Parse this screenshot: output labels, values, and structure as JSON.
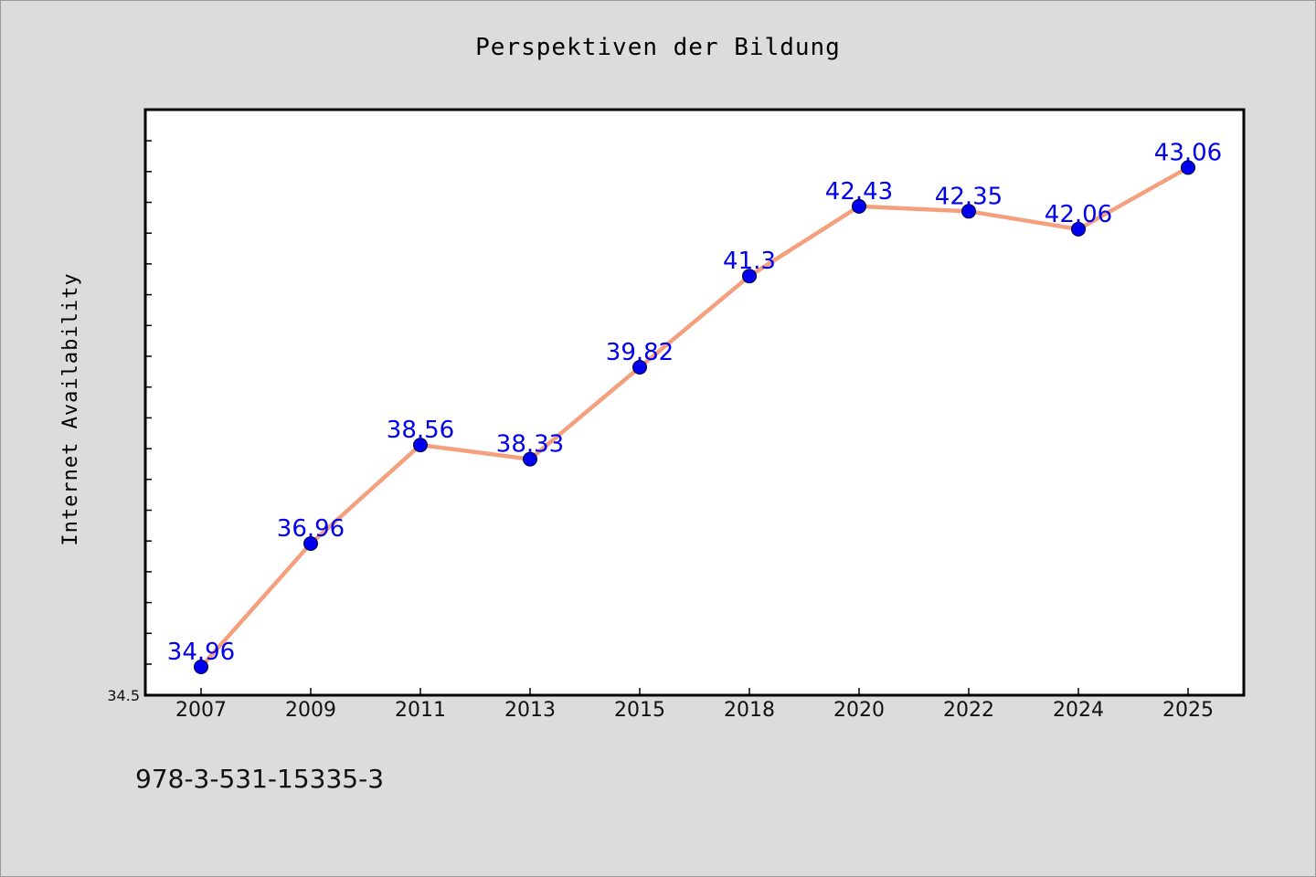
{
  "chart_data": {
    "type": "line",
    "title": "Perspektiven der Bildung",
    "xlabel": "",
    "ylabel": "Internet Availability",
    "categories": [
      "2007",
      "2009",
      "2011",
      "2013",
      "2015",
      "2018",
      "2020",
      "2022",
      "2024",
      "2025"
    ],
    "series": [
      {
        "values": [
          34.96,
          36.96,
          38.56,
          38.33,
          39.82,
          41.3,
          42.43,
          42.35,
          42.06,
          43.06
        ],
        "color": "#f4a07f",
        "marker_color": "#0000ee"
      }
    ],
    "data_labels": [
      "34.96",
      "36.96",
      "38.56",
      "38.33",
      "39.82",
      "41.3",
      "42.43",
      "42.35",
      "42.06",
      "43.06"
    ],
    "y_tick_labels": [
      "34.5"
    ],
    "ylim": [
      34.5,
      44.0
    ],
    "grid": false,
    "background_color": "#dcdcdc",
    "plot_background": "#ffffff"
  },
  "footer": {
    "isbn": "978-3-531-15335-3"
  }
}
